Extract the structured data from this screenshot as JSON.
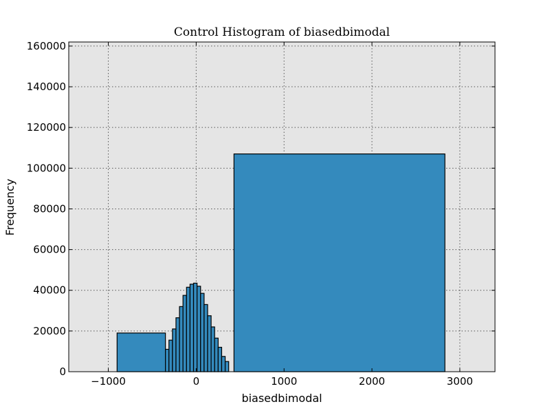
{
  "chart_data": {
    "type": "bar",
    "title": "Control Histogram of biasedbimodal",
    "xlabel": "biasedbimodal",
    "ylabel": "Frequency",
    "xlim": [
      -1450,
      3400
    ],
    "ylim": [
      0,
      162000
    ],
    "grid": true,
    "background_color": "#e5e5e5",
    "bar_color": "#348abd",
    "xticks": [
      -1000,
      0,
      1000,
      2000,
      3000
    ],
    "xtick_labels": [
      "−1000",
      "0",
      "1000",
      "2000",
      "3000"
    ],
    "yticks": [
      0,
      20000,
      40000,
      60000,
      80000,
      100000,
      120000,
      140000,
      160000
    ],
    "ytick_labels": [
      "0",
      "20000",
      "40000",
      "60000",
      "80000",
      "100000",
      "120000",
      "140000",
      "160000"
    ],
    "bins": [
      {
        "x0": -900,
        "x1": -350,
        "value": 19000
      },
      {
        "x0": -350,
        "x1": -310,
        "value": 11000
      },
      {
        "x0": -310,
        "x1": -270,
        "value": 15500
      },
      {
        "x0": -270,
        "x1": -230,
        "value": 21000
      },
      {
        "x0": -230,
        "x1": -190,
        "value": 26500
      },
      {
        "x0": -190,
        "x1": -150,
        "value": 32000
      },
      {
        "x0": -150,
        "x1": -110,
        "value": 37500
      },
      {
        "x0": -110,
        "x1": -70,
        "value": 41500
      },
      {
        "x0": -70,
        "x1": -30,
        "value": 43000
      },
      {
        "x0": -30,
        "x1": 10,
        "value": 43500
      },
      {
        "x0": 10,
        "x1": 50,
        "value": 42000
      },
      {
        "x0": 50,
        "x1": 90,
        "value": 38500
      },
      {
        "x0": 90,
        "x1": 130,
        "value": 33000
      },
      {
        "x0": 130,
        "x1": 170,
        "value": 27500
      },
      {
        "x0": 170,
        "x1": 210,
        "value": 22000
      },
      {
        "x0": 210,
        "x1": 250,
        "value": 16500
      },
      {
        "x0": 250,
        "x1": 290,
        "value": 12000
      },
      {
        "x0": 290,
        "x1": 330,
        "value": 7500
      },
      {
        "x0": 330,
        "x1": 370,
        "value": 5000
      },
      {
        "x0": 430,
        "x1": 2830,
        "value": 107000
      }
    ]
  }
}
